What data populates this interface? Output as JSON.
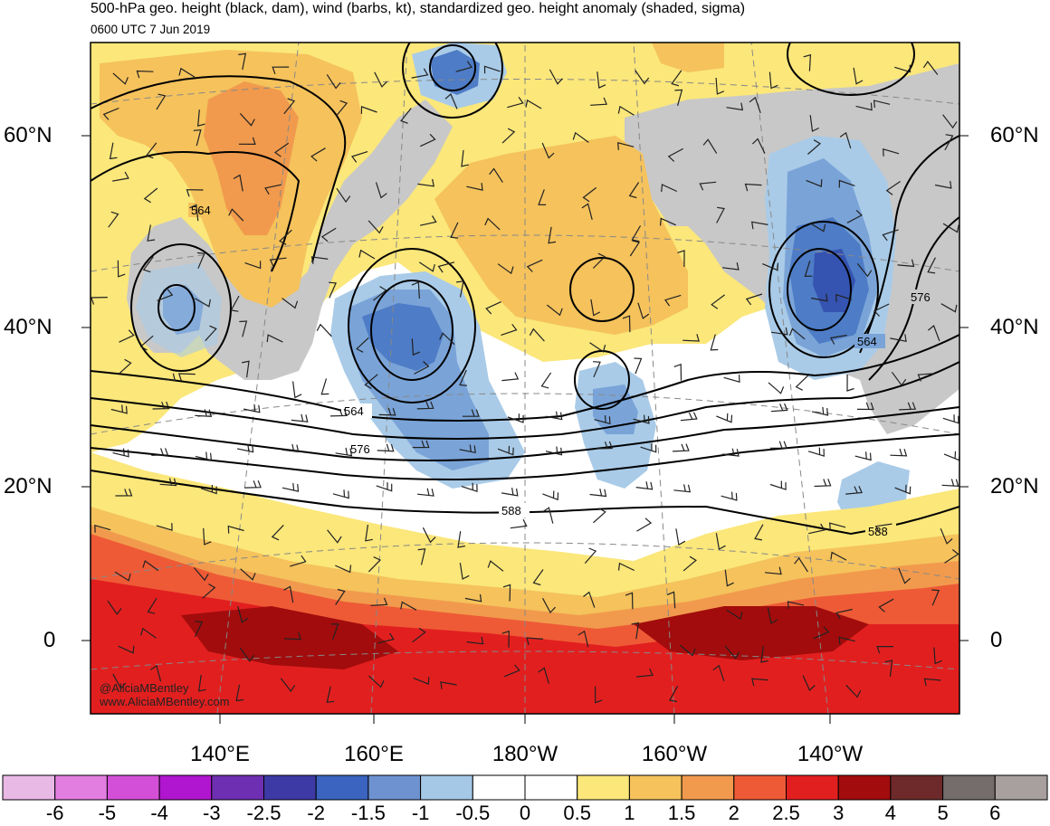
{
  "header": {
    "title": "500-hPa geo. height (black, dam), wind (barbs, kt), standardized geo. height anomaly (shaded, sigma)",
    "valid_time": "0600 UTC 7 Jun 2019"
  },
  "map": {
    "lat_labels": [
      "60°N",
      "40°N",
      "20°N",
      "0"
    ],
    "lon_labels": [
      "140°E",
      "160°E",
      "180°W",
      "160°W",
      "140°W"
    ],
    "contour_labels": [
      "564",
      "564",
      "576",
      "588",
      "588",
      "564",
      "576"
    ],
    "colors": {
      "land": "#c8c8c8",
      "neutral": "#ffffff",
      "pos_0_5": "#fbe77a",
      "pos_1": "#f5c25c",
      "pos_1_5": "#f19a4d",
      "pos_2": "#ee5a36",
      "pos_2_5": "#e21f1f",
      "pos_3": "#a20c0c",
      "neg_0_5": "#a9cbe8",
      "neg_1": "#7aa4d8",
      "neg_1_5": "#4e7cc6",
      "neg_2": "#3553b0"
    }
  },
  "credits": {
    "handle": "@AliciaMBentley",
    "site": "www.AliciaMBentley.com"
  },
  "colorbar": {
    "labels": [
      "-6",
      "-5",
      "-4",
      "-3",
      "-2.5",
      "-2",
      "-1.5",
      "-1",
      "-0.5",
      "0",
      "0.5",
      "1",
      "1.5",
      "2",
      "2.5",
      "3",
      "4",
      "5",
      "6"
    ],
    "colors": [
      "#e9b9e6",
      "#e27ee0",
      "#d44fd8",
      "#b015cf",
      "#6e2fb2",
      "#3d3aa6",
      "#3a64bf",
      "#6e92d0",
      "#a6c8e7",
      "#ffffff",
      "#ffffff",
      "#fbe77a",
      "#f5c25c",
      "#f19a4d",
      "#ee5a36",
      "#e21f1f",
      "#a20c0c",
      "#6e2a2a",
      "#756c6c",
      "#a89f9f"
    ]
  }
}
